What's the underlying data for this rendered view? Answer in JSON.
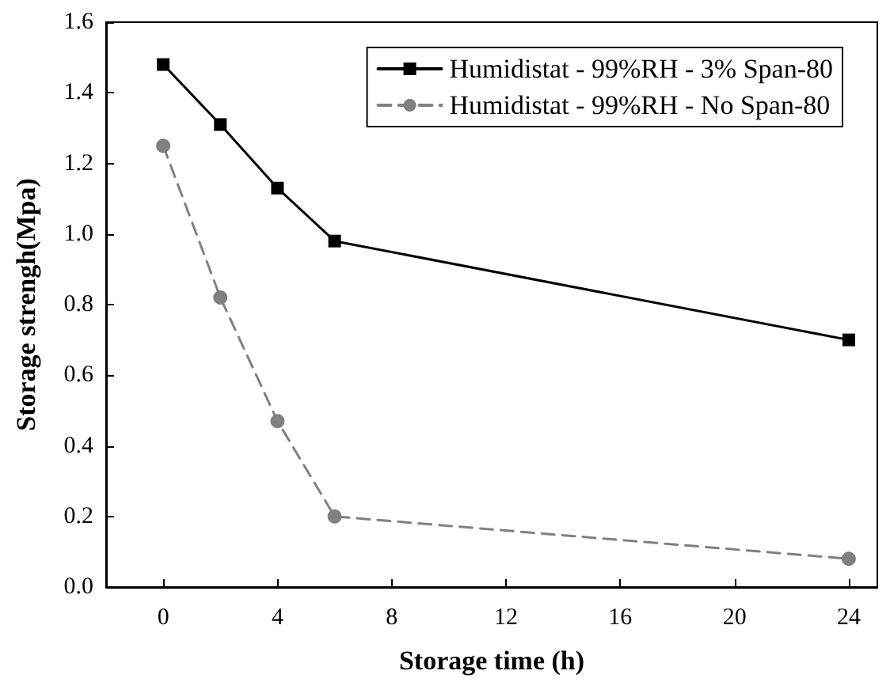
{
  "chart_data": {
    "type": "line",
    "xlabel": "Storage time (h)",
    "ylabel": "Storage strengh(Mpa)",
    "x": [
      0,
      2,
      4,
      6,
      24
    ],
    "series": [
      {
        "name": "Humidistat - 99%RH - 3% Span-80",
        "color": "#000000",
        "values": [
          1.48,
          1.31,
          1.13,
          0.98,
          0.7
        ],
        "marker": "square",
        "line_style": "solid"
      },
      {
        "name": "Humidistat - 99%RH - No Span-80",
        "color": "#808080",
        "values": [
          1.25,
          0.82,
          0.47,
          0.2,
          0.08
        ],
        "marker": "circle",
        "line_style": "dashed"
      }
    ],
    "xlim": [
      -2,
      25
    ],
    "xticks": [
      0,
      4,
      8,
      12,
      16,
      20,
      24
    ],
    "ylim": [
      0,
      1.6
    ],
    "yticks": [
      {
        "value": 0,
        "label": "0.0"
      },
      0.2,
      0.4,
      0.6,
      0.8,
      {
        "value": 1,
        "label": "1.0"
      },
      1.2,
      1.4,
      1.6
    ],
    "grid": false,
    "legend": "top right"
  }
}
